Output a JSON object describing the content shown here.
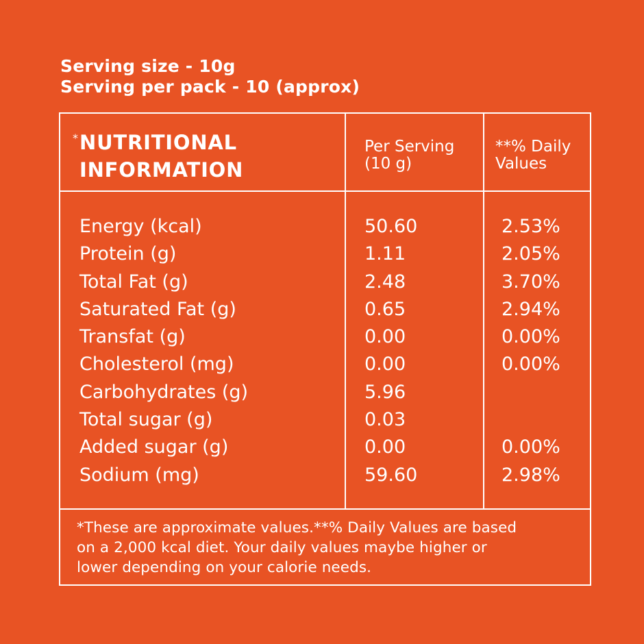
{
  "serving": {
    "size": "Serving size - 10g",
    "per_pack": "Serving per pack - 10 (approx)"
  },
  "table": {
    "title_star": "*",
    "title_line1": "NUTRITIONAL",
    "title_line2": "INFORMATION",
    "col_per_serving_line1": "Per Serving",
    "col_per_serving_line2": "(10 g)",
    "col_daily_line1": "**% Daily",
    "col_daily_line2": "Values",
    "rows": [
      {
        "name": "Energy (kcal)",
        "per": "50.60",
        "dv": "2.53%"
      },
      {
        "name": "Protein (g)",
        "per": "1.11",
        "dv": "2.05%"
      },
      {
        "name": "Total Fat (g)",
        "per": "2.48",
        "dv": "3.70%"
      },
      {
        "name": "Saturated Fat (g)",
        "per": "0.65",
        "dv": "2.94%"
      },
      {
        "name": "Transfat (g)",
        "per": "0.00",
        "dv": "0.00%"
      },
      {
        "name": "Cholesterol (mg)",
        "per": "0.00",
        "dv": "0.00%"
      },
      {
        "name": "Carbohydrates (g)",
        "per": "5.96",
        "dv": ""
      },
      {
        "name": "Total sugar (g)",
        "per": "0.03",
        "dv": ""
      },
      {
        "name": "Added sugar (g)",
        "per": "0.00",
        "dv": "0.00%"
      },
      {
        "name": "Sodium (mg)",
        "per": "59.60",
        "dv": "2.98%"
      }
    ],
    "footnote_line1": "*These are approximate values.**% Daily Values are based",
    "footnote_line2": "on a 2,000 kcal diet. Your daily values maybe higher or",
    "footnote_line3": "lower depending on your calorie needs."
  }
}
